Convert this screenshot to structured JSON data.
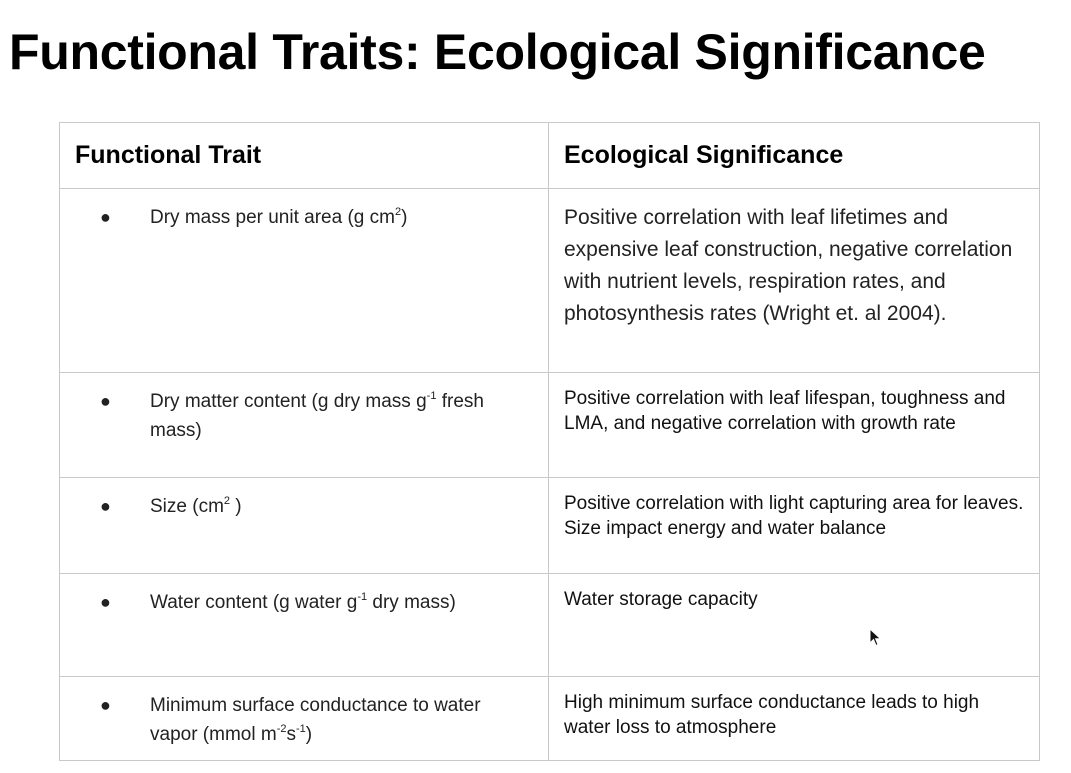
{
  "title": "Functional Traits: Ecological Significance",
  "table": {
    "headers": {
      "trait": "Functional Trait",
      "significance": "Ecological Significance"
    },
    "rows": [
      {
        "bullet": "●",
        "trait_before": "Dry mass per unit area (g cm",
        "trait_sup1": "2",
        "trait_middle": ")",
        "trait_sup2": "",
        "trait_after": "",
        "significance": "Positive correlation with leaf lifetimes and expensive leaf construction, negative correlation with nutrient levels, respiration rates, and photosynthesis rates (Wright et. al 2004)."
      },
      {
        "bullet": "●",
        "trait_before": "Dry matter content (g dry mass g",
        "trait_sup1": "-1",
        "trait_middle": " fresh mass)",
        "trait_sup2": "",
        "trait_after": "",
        "significance": "Positive correlation with leaf lifespan, toughness and LMA, and negative correlation with growth rate"
      },
      {
        "bullet": "●",
        "trait_before": "Size (cm",
        "trait_sup1": "2",
        "trait_middle": " )",
        "trait_sup2": "",
        "trait_after": "",
        "significance": "Positive correlation with light capturing area for leaves. Size impact energy and water balance"
      },
      {
        "bullet": "●",
        "trait_before": "Water content (g water g",
        "trait_sup1": "-1",
        "trait_middle": " dry mass)",
        "trait_sup2": "",
        "trait_after": "",
        "significance": "Water storage capacity"
      },
      {
        "bullet": "●",
        "trait_before": "Minimum surface conductance to water vapor (mmol m",
        "trait_sup1": "-2",
        "trait_middle": "s",
        "trait_sup2": "-1",
        "trait_after": ")",
        "significance": "High minimum surface conductance leads to high water loss to atmosphere"
      }
    ]
  }
}
